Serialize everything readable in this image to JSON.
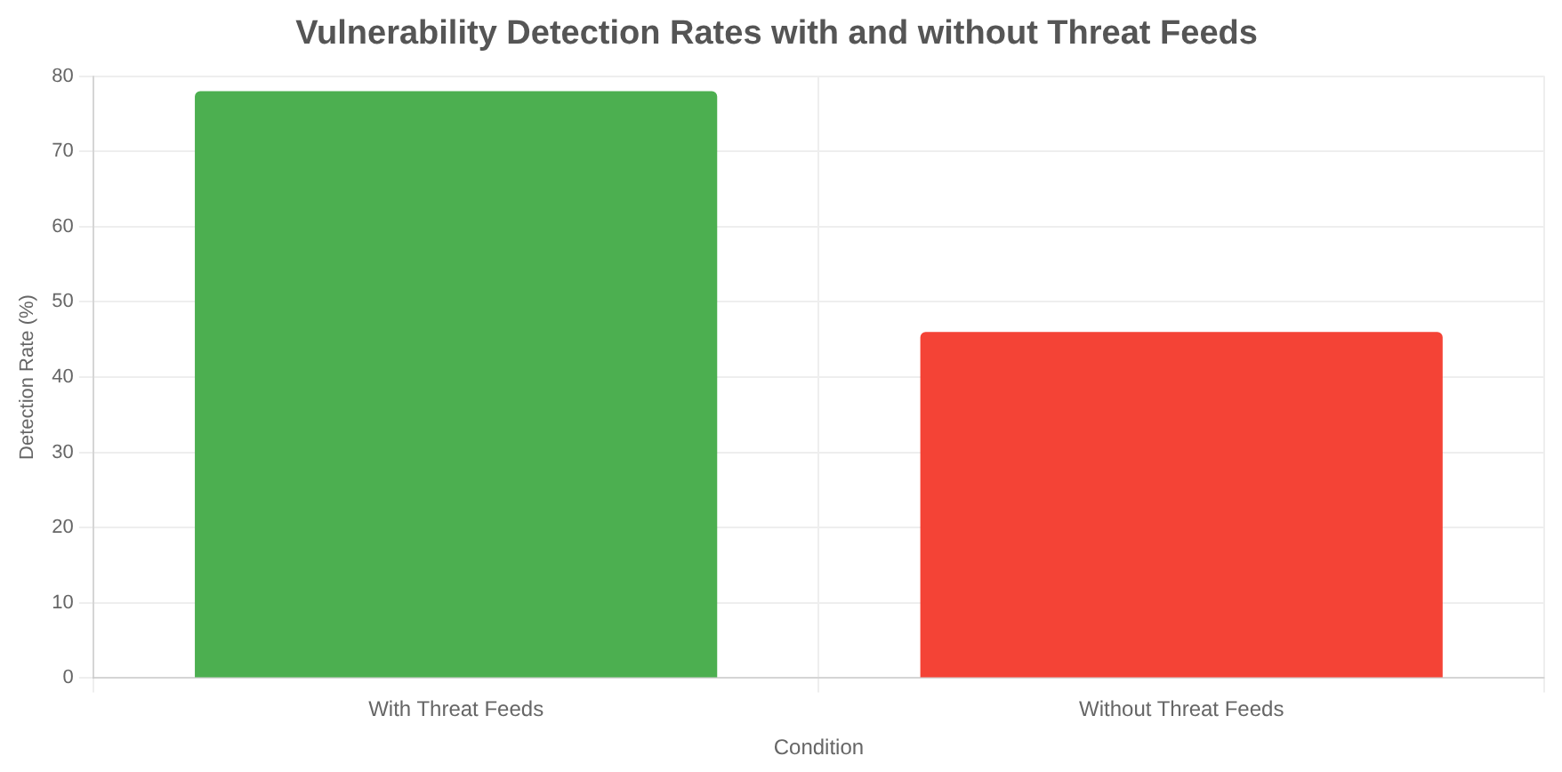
{
  "chart_data": {
    "type": "bar",
    "title": "Vulnerability Detection Rates with and without Threat Feeds",
    "xlabel": "Condition",
    "ylabel": "Detection Rate (%)",
    "categories": [
      "With Threat Feeds",
      "Without Threat Feeds"
    ],
    "values": [
      78,
      46
    ],
    "colors": [
      "#4caf50",
      "#f44336"
    ],
    "ylim": [
      0,
      80
    ],
    "yticks": [
      0,
      10,
      20,
      30,
      40,
      50,
      60,
      70,
      80
    ],
    "grid": true
  }
}
